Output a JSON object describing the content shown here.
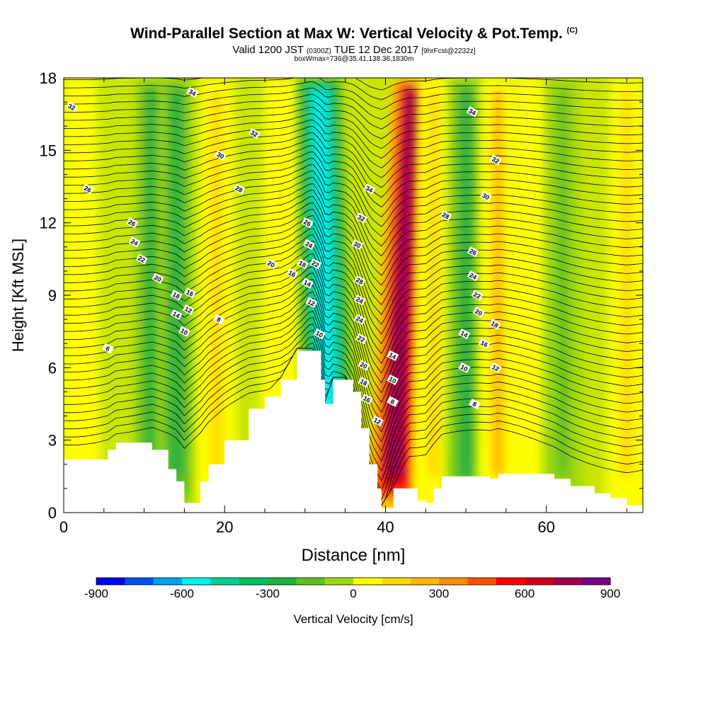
{
  "header": {
    "title": "Wind-Parallel Section at Max W: Vertical Velocity & Pot.Temp.",
    "title_unit": "(C)",
    "subtitle_main": "Valid 1200 JST",
    "subtitle_utc": "(0300Z)",
    "subtitle_date": "TUE 12 Dec 2017",
    "subtitle_fcst": "[9hrFcst@2232z]",
    "subtitle_box": "boxWmax=736@35.41,138.36,1830m"
  },
  "colorbar": {
    "label": "Vertical Velocity [cm/s]",
    "ticks": [
      "-900",
      "-600",
      "-300",
      "0",
      "300",
      "600",
      "900"
    ],
    "tick_values": [
      -900,
      -600,
      -300,
      0,
      300,
      600,
      900
    ],
    "colors": [
      "#0000f0",
      "#0050f0",
      "#00a0f0",
      "#00f0f0",
      "#00d090",
      "#00c060",
      "#20b040",
      "#60c020",
      "#a0d810",
      "#ffff00",
      "#ffd800",
      "#ffb400",
      "#ff8c00",
      "#ff5000",
      "#ff0000",
      "#d00020",
      "#a00050",
      "#700080"
    ]
  },
  "chart_data": {
    "type": "heatmap",
    "xlabel": "Distance [nm]",
    "ylabel": "Height [Kft MSL]",
    "xlim": [
      0,
      72
    ],
    "ylim": [
      0,
      18
    ],
    "xticks": [
      0,
      20,
      40,
      60
    ],
    "yticks": [
      0,
      3,
      6,
      9,
      12,
      15,
      18
    ],
    "vertical_velocity_features": [
      {
        "x": 2,
        "w": 40,
        "desc": "weak updraft"
      },
      {
        "x": 11,
        "w": -260,
        "desc": "downdraft band"
      },
      {
        "x": 14,
        "w": -260,
        "desc": "low-level downdraft"
      },
      {
        "x": 19,
        "w": 150,
        "desc": "updraft band"
      },
      {
        "x": 27,
        "w": 60,
        "desc": "weak updraft"
      },
      {
        "x": 33,
        "w": -600,
        "desc": "downdraft"
      },
      {
        "x": 41,
        "w": 736,
        "desc": "max updraft"
      },
      {
        "x": 46,
        "w": 100,
        "desc": "weak updraft"
      },
      {
        "x": 50,
        "w": -300,
        "desc": "downdraft band"
      },
      {
        "x": 54,
        "w": 200,
        "desc": "updraft band"
      },
      {
        "x": 58,
        "w": 80,
        "desc": "weak updraft"
      },
      {
        "x": 62,
        "w": -200,
        "desc": "downdraft band"
      },
      {
        "x": 70,
        "w": 120,
        "desc": "updraft"
      }
    ],
    "terrain": [
      {
        "x": 0,
        "h": 2.2
      },
      {
        "x": 5.5,
        "h": 2.6
      },
      {
        "x": 6.5,
        "h": 2.9
      },
      {
        "x": 11,
        "h": 2.6
      },
      {
        "x": 13,
        "h": 1.8
      },
      {
        "x": 14,
        "h": 1.3
      },
      {
        "x": 15,
        "h": 0.4
      },
      {
        "x": 17,
        "h": 1.3
      },
      {
        "x": 18,
        "h": 2.0
      },
      {
        "x": 20,
        "h": 3.0
      },
      {
        "x": 23,
        "h": 4.3
      },
      {
        "x": 25,
        "h": 4.8
      },
      {
        "x": 27,
        "h": 5.5
      },
      {
        "x": 29,
        "h": 6.7
      },
      {
        "x": 31,
        "h": 6.7
      },
      {
        "x": 32,
        "h": 5.5
      },
      {
        "x": 32.5,
        "h": 4.5
      },
      {
        "x": 33.5,
        "h": 5.5
      },
      {
        "x": 35,
        "h": 5.5
      },
      {
        "x": 36,
        "h": 5.0
      },
      {
        "x": 37,
        "h": 3.5
      },
      {
        "x": 38,
        "h": 2.0
      },
      {
        "x": 39,
        "h": 1.0
      },
      {
        "x": 39.5,
        "h": 0.2
      },
      {
        "x": 41,
        "h": 1.0
      },
      {
        "x": 43,
        "h": 1.0
      },
      {
        "x": 44,
        "h": 0.5
      },
      {
        "x": 45,
        "h": 0.4
      },
      {
        "x": 46,
        "h": 1.0
      },
      {
        "x": 47,
        "h": 1.5
      },
      {
        "x": 53,
        "h": 1.4
      },
      {
        "x": 54,
        "h": 1.6
      },
      {
        "x": 61,
        "h": 1.4
      },
      {
        "x": 63,
        "h": 1.1
      },
      {
        "x": 66,
        "h": 0.8
      },
      {
        "x": 68,
        "h": 0.6
      },
      {
        "x": 70,
        "h": 0.3
      },
      {
        "x": 72,
        "h": 0.3
      }
    ],
    "theta_contour_labels": [
      {
        "x": 1,
        "y": 16.8,
        "value": "32"
      },
      {
        "x": 3,
        "y": 13.4,
        "value": "26"
      },
      {
        "x": 5.5,
        "y": 6.8,
        "value": "6"
      },
      {
        "x": 8.5,
        "y": 12.0,
        "value": "26"
      },
      {
        "x": 8.8,
        "y": 11.2,
        "value": "24"
      },
      {
        "x": 9.7,
        "y": 10.5,
        "value": "22"
      },
      {
        "x": 11.7,
        "y": 9.7,
        "value": "20"
      },
      {
        "x": 14,
        "y": 9.0,
        "value": "18"
      },
      {
        "x": 14,
        "y": 8.2,
        "value": "14"
      },
      {
        "x": 15.5,
        "y": 8.4,
        "value": "12"
      },
      {
        "x": 15.7,
        "y": 9.1,
        "value": "16"
      },
      {
        "x": 15,
        "y": 7.5,
        "value": "10"
      },
      {
        "x": 19.3,
        "y": 8.0,
        "value": "8"
      },
      {
        "x": 16,
        "y": 17.4,
        "value": "34"
      },
      {
        "x": 23.7,
        "y": 15.7,
        "value": "32"
      },
      {
        "x": 19.5,
        "y": 14.8,
        "value": "30"
      },
      {
        "x": 21.8,
        "y": 13.4,
        "value": "28"
      },
      {
        "x": 25.8,
        "y": 10.3,
        "value": "20"
      },
      {
        "x": 28.4,
        "y": 9.9,
        "value": "16"
      },
      {
        "x": 29.7,
        "y": 10.3,
        "value": "18"
      },
      {
        "x": 30.3,
        "y": 12.0,
        "value": "26"
      },
      {
        "x": 30.5,
        "y": 11.1,
        "value": "24"
      },
      {
        "x": 31.3,
        "y": 10.3,
        "value": "22"
      },
      {
        "x": 30.3,
        "y": 9.5,
        "value": "14"
      },
      {
        "x": 30.8,
        "y": 8.7,
        "value": "12"
      },
      {
        "x": 31.8,
        "y": 7.4,
        "value": "10"
      },
      {
        "x": 38,
        "y": 13.4,
        "value": "34"
      },
      {
        "x": 37,
        "y": 12.2,
        "value": "32"
      },
      {
        "x": 36.5,
        "y": 11.1,
        "value": "30"
      },
      {
        "x": 36.8,
        "y": 9.6,
        "value": "28"
      },
      {
        "x": 36.8,
        "y": 8.8,
        "value": "24"
      },
      {
        "x": 36.8,
        "y": 8.0,
        "value": "24"
      },
      {
        "x": 37,
        "y": 7.2,
        "value": "22"
      },
      {
        "x": 37.3,
        "y": 6.1,
        "value": "20"
      },
      {
        "x": 37.3,
        "y": 5.4,
        "value": "18"
      },
      {
        "x": 37.7,
        "y": 4.7,
        "value": "16"
      },
      {
        "x": 39,
        "y": 3.8,
        "value": "12"
      },
      {
        "x": 40.9,
        "y": 4.6,
        "value": "8"
      },
      {
        "x": 40.9,
        "y": 5.5,
        "value": "10"
      },
      {
        "x": 40.9,
        "y": 6.5,
        "value": "14"
      },
      {
        "x": 47.5,
        "y": 12.3,
        "value": "28"
      },
      {
        "x": 50.8,
        "y": 16.6,
        "value": "34"
      },
      {
        "x": 53.7,
        "y": 14.6,
        "value": "32"
      },
      {
        "x": 52.5,
        "y": 13.1,
        "value": "30"
      },
      {
        "x": 50.9,
        "y": 10.8,
        "value": "26"
      },
      {
        "x": 50.9,
        "y": 9.8,
        "value": "24"
      },
      {
        "x": 51.4,
        "y": 9.0,
        "value": "22"
      },
      {
        "x": 51.6,
        "y": 8.3,
        "value": "20"
      },
      {
        "x": 53.6,
        "y": 7.8,
        "value": "18"
      },
      {
        "x": 49.8,
        "y": 7.4,
        "value": "14"
      },
      {
        "x": 52.3,
        "y": 7.0,
        "value": "16"
      },
      {
        "x": 49.8,
        "y": 6.0,
        "value": "10"
      },
      {
        "x": 53.7,
        "y": 6.0,
        "value": "12"
      },
      {
        "x": 51.1,
        "y": 4.5,
        "value": "8"
      }
    ]
  }
}
